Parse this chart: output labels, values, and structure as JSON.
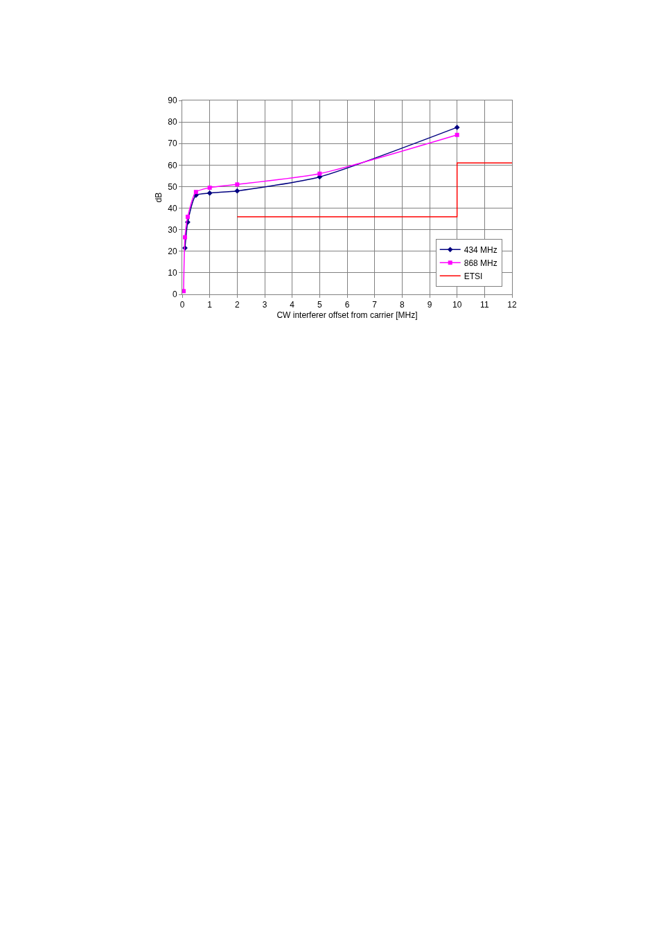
{
  "chart_data": {
    "type": "line",
    "xlabel": "CW interferer offset from carrier [MHz]",
    "ylabel": "dB",
    "xlim": [
      0,
      12
    ],
    "xticks": [
      0,
      1,
      2,
      3,
      4,
      5,
      6,
      7,
      8,
      9,
      10,
      11,
      12
    ],
    "ylim": [
      0,
      90
    ],
    "yticks": [
      0,
      10,
      20,
      30,
      40,
      50,
      60,
      70,
      80,
      90
    ],
    "grid": true,
    "legend": "bottom right",
    "series": [
      {
        "name": "434 MHz",
        "color": "#000080",
        "marker": "diamond",
        "x": [
          0.1,
          0.2,
          0.5,
          1,
          2,
          5,
          10
        ],
        "values": [
          21.5,
          33.5,
          46,
          47,
          48,
          54.5,
          77.5
        ]
      },
      {
        "name": "868 MHz",
        "color": "#ff00ff",
        "marker": "square",
        "x": [
          0.05,
          0.1,
          0.2,
          0.5,
          1,
          2,
          5,
          10
        ],
        "values": [
          1.5,
          26.5,
          36,
          47.5,
          49.5,
          51,
          56,
          74
        ]
      },
      {
        "name": "ETSI",
        "color": "#ff0000",
        "marker": "none",
        "x": [
          2,
          10,
          10,
          12
        ],
        "values": [
          36,
          36,
          61,
          61
        ]
      }
    ]
  }
}
